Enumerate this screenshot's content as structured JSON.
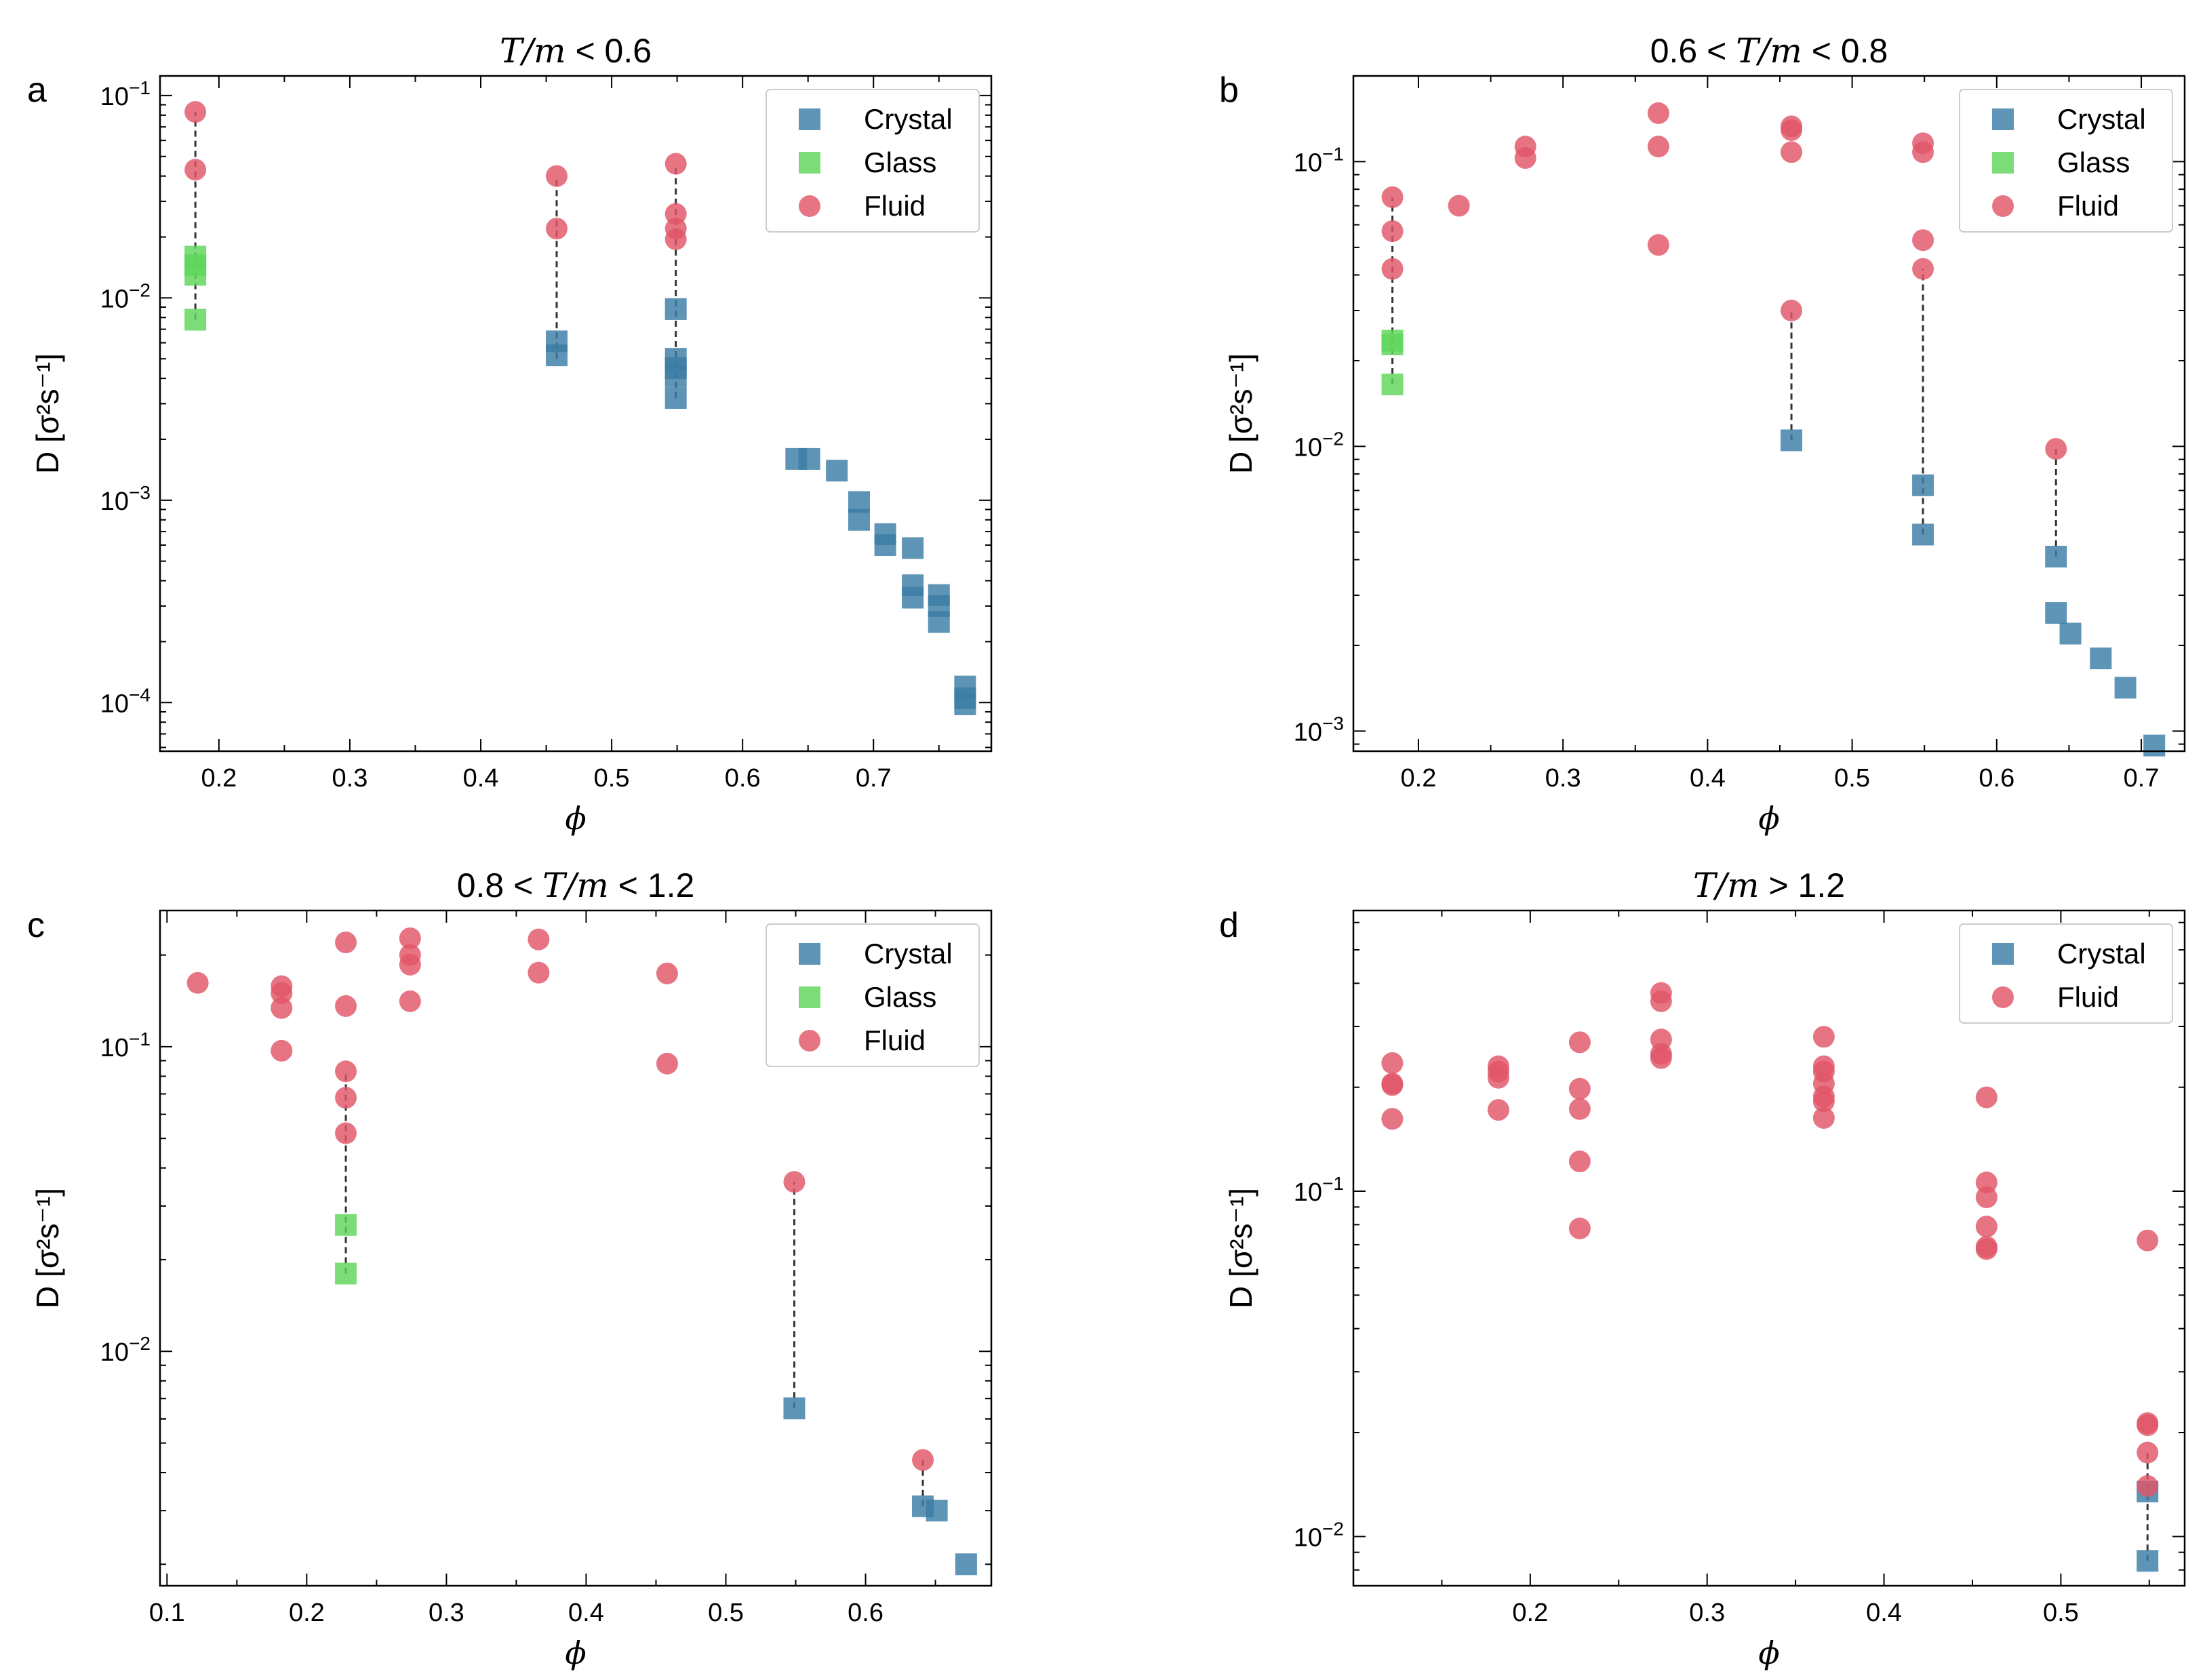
{
  "figure": {
    "legend_labels": {
      "crystal": "Crystal",
      "glass": "Glass",
      "fluid": "Fluid"
    },
    "colors": {
      "crystal": "#3a7ca5",
      "glass": "#5fd65a",
      "fluid": "#e05568",
      "axis": "#000000",
      "connector": "#333333"
    }
  },
  "chart_data": [
    {
      "panel": "a",
      "type": "scatter",
      "title": "T/m < 0.6",
      "title_parts": [
        "",
        "T/m",
        " < 0.6"
      ],
      "xlabel": "ϕ",
      "ylabel": "D [σ²s⁻¹]",
      "xscale": "linear",
      "yscale": "log",
      "xlim": [
        0.155,
        0.79
      ],
      "ylim": [
        5.75e-05,
        0.125
      ],
      "xticks": [
        0.2,
        0.3,
        0.4,
        0.5,
        0.6,
        0.7
      ],
      "xtick_labels": [
        "0.2",
        "0.3",
        "0.4",
        "0.5",
        "0.6",
        "0.7"
      ],
      "yticks": [
        0.0001,
        0.001,
        0.01,
        0.1
      ],
      "ytick_labels": [
        [
          "10",
          "−4"
        ],
        [
          "10",
          "−3"
        ],
        [
          "10",
          "−2"
        ],
        [
          "10",
          "−1"
        ]
      ],
      "legend": [
        "crystal",
        "glass",
        "fluid"
      ],
      "connectors": [
        {
          "x": 0.182,
          "y1": 0.0078,
          "y2": 0.083
        },
        {
          "x": 0.458,
          "y1": 0.005,
          "y2": 0.04
        },
        {
          "x": 0.549,
          "y1": 0.0032,
          "y2": 0.046
        }
      ],
      "series": [
        {
          "name": "Crystal",
          "points": [
            [
              0.458,
              0.0061
            ],
            [
              0.458,
              0.0052
            ],
            [
              0.549,
              0.0088
            ],
            [
              0.549,
              0.005
            ],
            [
              0.549,
              0.0045
            ],
            [
              0.549,
              0.0041
            ],
            [
              0.549,
              0.0032
            ],
            [
              0.641,
              0.0016
            ],
            [
              0.651,
              0.0016
            ],
            [
              0.672,
              0.0014
            ],
            [
              0.689,
              0.00098
            ],
            [
              0.689,
              0.0008
            ],
            [
              0.709,
              0.00068
            ],
            [
              0.709,
              0.0006
            ],
            [
              0.73,
              0.00058
            ],
            [
              0.73,
              0.00038
            ],
            [
              0.73,
              0.00033
            ],
            [
              0.75,
              0.00034
            ],
            [
              0.75,
              0.0003
            ],
            [
              0.75,
              0.00025
            ],
            [
              0.77,
              0.00012
            ],
            [
              0.77,
              0.000105
            ],
            [
              0.77,
              9.8e-05
            ]
          ]
        },
        {
          "name": "Glass",
          "points": [
            [
              0.182,
              0.016
            ],
            [
              0.182,
              0.0145
            ],
            [
              0.182,
              0.013
            ],
            [
              0.182,
              0.0078
            ]
          ]
        },
        {
          "name": "Fluid",
          "points": [
            [
              0.182,
              0.083
            ],
            [
              0.182,
              0.043
            ],
            [
              0.458,
              0.04
            ],
            [
              0.458,
              0.022
            ],
            [
              0.549,
              0.046
            ],
            [
              0.549,
              0.026
            ],
            [
              0.549,
              0.022
            ],
            [
              0.549,
              0.0195
            ]
          ]
        }
      ]
    },
    {
      "panel": "b",
      "type": "scatter",
      "title": "0.6 < T/m < 0.8",
      "title_parts": [
        "0.6 < ",
        "T/m",
        " < 0.8"
      ],
      "xlabel": "ϕ",
      "ylabel": "D [σ²s⁻¹]",
      "xscale": "linear",
      "yscale": "log",
      "xlim": [
        0.155,
        0.73
      ],
      "ylim": [
        0.00085,
        0.2
      ],
      "xticks": [
        0.2,
        0.3,
        0.4,
        0.5,
        0.6,
        0.7
      ],
      "xtick_labels": [
        "0.2",
        "0.3",
        "0.4",
        "0.5",
        "0.6",
        "0.7"
      ],
      "yticks": [
        0.001,
        0.01,
        0.1
      ],
      "ytick_labels": [
        [
          "10",
          "−3"
        ],
        [
          "10",
          "−2"
        ],
        [
          "10",
          "−1"
        ]
      ],
      "legend": [
        "crystal",
        "glass",
        "fluid"
      ],
      "connectors": [
        {
          "x": 0.182,
          "y1": 0.0165,
          "y2": 0.075
        },
        {
          "x": 0.458,
          "y1": 0.0105,
          "y2": 0.03
        },
        {
          "x": 0.549,
          "y1": 0.0049,
          "y2": 0.042
        },
        {
          "x": 0.641,
          "y1": 0.0041,
          "y2": 0.0098
        }
      ],
      "series": [
        {
          "name": "Crystal",
          "points": [
            [
              0.458,
              0.0105
            ],
            [
              0.549,
              0.0073
            ],
            [
              0.549,
              0.0049
            ],
            [
              0.641,
              0.0041
            ],
            [
              0.641,
              0.0026
            ],
            [
              0.651,
              0.0022
            ],
            [
              0.672,
              0.0018
            ],
            [
              0.689,
              0.00142
            ],
            [
              0.709,
              0.00089
            ]
          ]
        },
        {
          "name": "Glass",
          "points": [
            [
              0.182,
              0.0235
            ],
            [
              0.182,
              0.0228
            ],
            [
              0.182,
              0.0165
            ]
          ]
        },
        {
          "name": "Fluid",
          "points": [
            [
              0.182,
              0.075
            ],
            [
              0.182,
              0.057
            ],
            [
              0.182,
              0.042
            ],
            [
              0.228,
              0.07
            ],
            [
              0.274,
              0.113
            ],
            [
              0.274,
              0.103
            ],
            [
              0.366,
              0.148
            ],
            [
              0.366,
              0.113
            ],
            [
              0.366,
              0.051
            ],
            [
              0.458,
              0.133
            ],
            [
              0.458,
              0.129
            ],
            [
              0.458,
              0.108
            ],
            [
              0.458,
              0.03
            ],
            [
              0.549,
              0.116
            ],
            [
              0.549,
              0.108
            ],
            [
              0.549,
              0.053
            ],
            [
              0.549,
              0.042
            ],
            [
              0.641,
              0.0098
            ]
          ]
        }
      ]
    },
    {
      "panel": "c",
      "type": "scatter",
      "title": "0.8 < T/m < 1.2",
      "title_parts": [
        "0.8 < ",
        "T/m",
        " < 1.2"
      ],
      "xlabel": "ϕ",
      "ylabel": "D [σ²s⁻¹]",
      "xscale": "linear",
      "yscale": "log",
      "xlim": [
        0.095,
        0.69
      ],
      "ylim": [
        0.0017,
        0.28
      ],
      "xticks": [
        0.1,
        0.2,
        0.3,
        0.4,
        0.5,
        0.6
      ],
      "xtick_labels": [
        "0.1",
        "0.2",
        "0.3",
        "0.4",
        "0.5",
        "0.6"
      ],
      "yticks": [
        0.01,
        0.1
      ],
      "ytick_labels": [
        [
          "10",
          "−2"
        ],
        [
          "10",
          "−1"
        ]
      ],
      "legend": [
        "crystal",
        "glass",
        "fluid"
      ],
      "connectors": [
        {
          "x": 0.228,
          "y1": 0.018,
          "y2": 0.083
        },
        {
          "x": 0.549,
          "y1": 0.0065,
          "y2": 0.036
        },
        {
          "x": 0.641,
          "y1": 0.0031,
          "y2": 0.0044
        }
      ],
      "series": [
        {
          "name": "Crystal",
          "points": [
            [
              0.549,
              0.0065
            ],
            [
              0.641,
              0.0031
            ],
            [
              0.651,
              0.003
            ],
            [
              0.672,
              0.002
            ]
          ]
        },
        {
          "name": "Glass",
          "points": [
            [
              0.228,
              0.026
            ],
            [
              0.228,
              0.018
            ]
          ]
        },
        {
          "name": "Fluid",
          "points": [
            [
              0.122,
              0.162
            ],
            [
              0.182,
              0.158
            ],
            [
              0.182,
              0.15
            ],
            [
              0.182,
              0.134
            ],
            [
              0.182,
              0.097
            ],
            [
              0.228,
              0.22
            ],
            [
              0.228,
              0.136
            ],
            [
              0.228,
              0.083
            ],
            [
              0.228,
              0.068
            ],
            [
              0.228,
              0.052
            ],
            [
              0.274,
              0.227
            ],
            [
              0.274,
              0.2
            ],
            [
              0.274,
              0.186
            ],
            [
              0.274,
              0.141
            ],
            [
              0.366,
              0.225
            ],
            [
              0.366,
              0.175
            ],
            [
              0.458,
              0.174
            ],
            [
              0.458,
              0.088
            ],
            [
              0.549,
              0.036
            ],
            [
              0.641,
              0.0044
            ]
          ]
        }
      ]
    },
    {
      "panel": "d",
      "type": "scatter",
      "title": "T/m > 1.2",
      "title_parts": [
        "",
        "T/m",
        " > 1.2"
      ],
      "xlabel": "ϕ",
      "ylabel": "D [σ²s⁻¹]",
      "xscale": "linear",
      "yscale": "log",
      "xlim": [
        0.1,
        0.57
      ],
      "ylim": [
        0.0072,
        0.65
      ],
      "xticks": [
        0.2,
        0.3,
        0.4,
        0.5
      ],
      "xtick_labels": [
        "0.2",
        "0.3",
        "0.4",
        "0.5"
      ],
      "yticks": [
        0.01,
        0.1
      ],
      "ytick_labels": [
        [
          "10",
          "−2"
        ],
        [
          "10",
          "−1"
        ]
      ],
      "legend": [
        "crystal",
        "fluid"
      ],
      "connectors": [
        {
          "x": 0.549,
          "y1": 0.0085,
          "y2": 0.0175
        }
      ],
      "series": [
        {
          "name": "Crystal",
          "points": [
            [
              0.549,
              0.0135
            ],
            [
              0.549,
              0.0085
            ]
          ]
        },
        {
          "name": "Fluid",
          "points": [
            [
              0.122,
              0.235
            ],
            [
              0.122,
              0.205
            ],
            [
              0.122,
              0.203
            ],
            [
              0.122,
              0.162
            ],
            [
              0.182,
              0.23
            ],
            [
              0.182,
              0.222
            ],
            [
              0.182,
              0.213
            ],
            [
              0.182,
              0.172
            ],
            [
              0.228,
              0.27
            ],
            [
              0.228,
              0.198
            ],
            [
              0.228,
              0.173
            ],
            [
              0.228,
              0.122
            ],
            [
              0.228,
              0.078
            ],
            [
              0.274,
              0.375
            ],
            [
              0.274,
              0.355
            ],
            [
              0.274,
              0.275
            ],
            [
              0.274,
              0.25
            ],
            [
              0.274,
              0.243
            ],
            [
              0.366,
              0.28
            ],
            [
              0.366,
              0.23
            ],
            [
              0.366,
              0.222
            ],
            [
              0.366,
              0.205
            ],
            [
              0.366,
              0.188
            ],
            [
              0.366,
              0.182
            ],
            [
              0.366,
              0.163
            ],
            [
              0.458,
              0.187
            ],
            [
              0.458,
              0.106
            ],
            [
              0.458,
              0.096
            ],
            [
              0.458,
              0.079
            ],
            [
              0.458,
              0.069
            ],
            [
              0.458,
              0.068
            ],
            [
              0.549,
              0.072
            ],
            [
              0.549,
              0.0213
            ],
            [
              0.549,
              0.021
            ],
            [
              0.549,
              0.0175
            ],
            [
              0.549,
              0.014
            ]
          ]
        }
      ]
    }
  ]
}
